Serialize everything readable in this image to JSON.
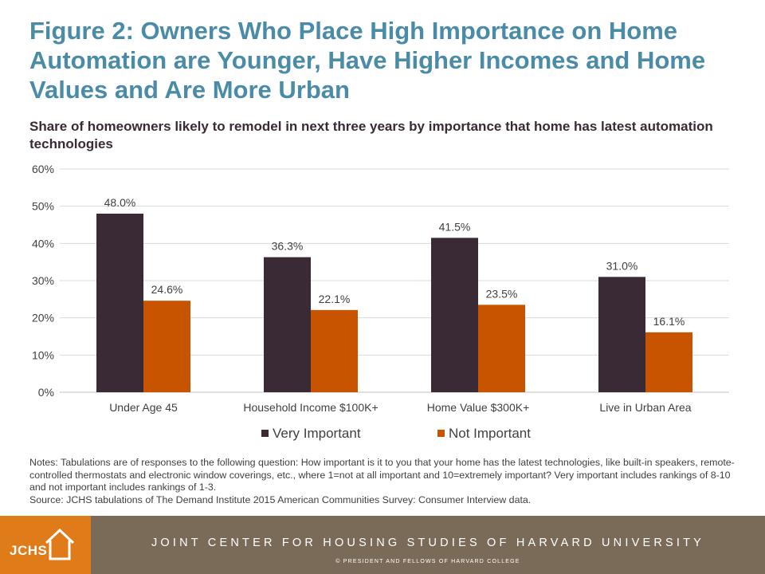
{
  "title": "Figure 2: Owners Who Place High Importance on Home Automation are Younger, Have Higher Incomes and Home Values and Are More Urban",
  "subtitle": "Share of homeowners likely to remodel in next three years by importance that home has latest automation technologies",
  "colors": {
    "very_important": "#3a2a35",
    "not_important": "#c85400",
    "title": "#4a8ba8",
    "footer_brown": "#7a6b58",
    "footer_orange": "#e07b1a"
  },
  "chart_data": {
    "type": "bar",
    "categories": [
      "Under Age 45",
      "Household Income $100K+",
      "Home Value $300K+",
      "Live in Urban Area"
    ],
    "series": [
      {
        "name": "Very Important",
        "values": [
          48.0,
          36.3,
          41.5,
          31.0
        ],
        "labels": [
          "48.0%",
          "36.3%",
          "41.5%",
          "31.0%"
        ]
      },
      {
        "name": "Not Important",
        "values": [
          24.6,
          22.1,
          23.5,
          16.1
        ],
        "labels": [
          "24.6%",
          "22.1%",
          "23.5%",
          "16.1%"
        ]
      }
    ],
    "yticks": [
      0,
      10,
      20,
      30,
      40,
      50,
      60
    ],
    "ytick_labels": [
      "0%",
      "10%",
      "20%",
      "30%",
      "40%",
      "50%",
      "60%"
    ],
    "ylim": [
      0,
      60
    ],
    "grid": true,
    "legend_position": "bottom"
  },
  "notes": {
    "text": "Notes: Tabulations are of responses to the following question: How important is it to you that your home has the latest technologies, like built-in speakers, remote-controlled thermostats and electronic window coverings, etc., where 1=not at all important and 10=extremely important? Very important includes rankings of 8-10 and not important includes rankings of 1-3.",
    "source": "Source: JCHS  tabulations of The Demand Institute 2015 American Communities Survey: Consumer Interview data."
  },
  "footer": {
    "logo_text": "JCHS",
    "organization": "JOINT CENTER FOR HOUSING STUDIES OF HARVARD UNIVERSITY",
    "copyright": "© PRESIDENT  AND FELLOWS  OF  HARVARD COLLEGE"
  }
}
